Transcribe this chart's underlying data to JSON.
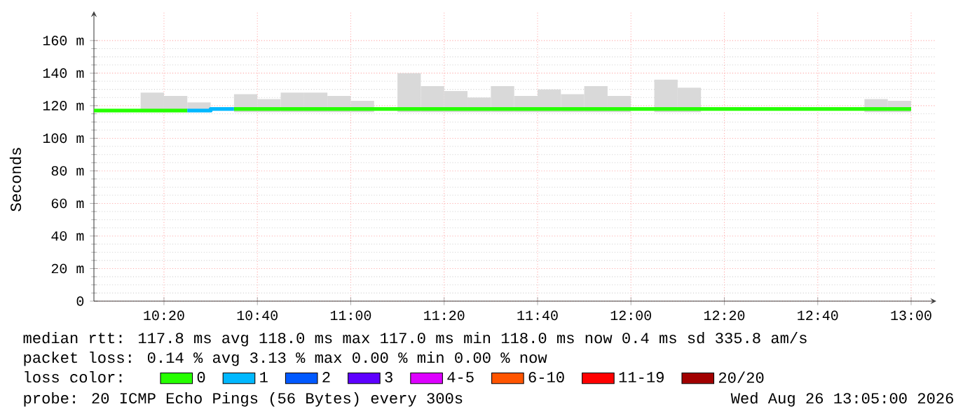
{
  "chart_data": {
    "type": "line",
    "ylabel": "Seconds",
    "legend_title": "loss color:",
    "legend": "bottom left",
    "grid": true,
    "xlim": [
      10.0833,
      13.09
    ],
    "ylim": [
      0,
      178
    ],
    "xticks": [
      {
        "value": 10.3333,
        "label": "10:20"
      },
      {
        "value": 10.6667,
        "label": "10:40"
      },
      {
        "value": 11,
        "label": "11:00"
      },
      {
        "value": 11.3333,
        "label": "11:20"
      },
      {
        "value": 11.6667,
        "label": "11:40"
      },
      {
        "value": 12,
        "label": "12:00"
      },
      {
        "value": 12.3333,
        "label": "12:20"
      },
      {
        "value": 12.6667,
        "label": "12:40"
      },
      {
        "value": 13,
        "label": "13:00"
      }
    ],
    "yticks": [
      0,
      {
        "value": 20,
        "label": "20 m"
      },
      {
        "value": 40,
        "label": "40 m"
      },
      {
        "value": 60,
        "label": "60 m"
      },
      {
        "value": 80,
        "label": "80 m"
      },
      {
        "value": 100,
        "label": "100 m"
      },
      {
        "value": 120,
        "label": "120 m"
      },
      {
        "value": 140,
        "label": "140 m"
      },
      {
        "value": 160,
        "label": "160 m"
      }
    ],
    "annotations": [
      "median rtt:  117.8 ms avg  118.0 ms max  117.0 ms min  118.0 ms now  0.4 ms sd  335.8   am/s",
      "packet loss: 0.14 % avg  3.13 % max  0.00 % min  0.00 % now",
      "probe:       20 ICMP Echo Pings (56 Bytes) every 300s",
      "Wed Aug 26 13:05:00 2026"
    ],
    "series": [
      {
        "type": "bar",
        "color": "#d9d9d9",
        "x": [
          10.2917,
          10.375,
          10.4583,
          10.625,
          10.7083,
          10.7917,
          10.875,
          10.9583,
          11.0417,
          11.2083,
          11.2917,
          11.375,
          11.4583,
          11.5417,
          11.625,
          11.7083,
          11.7917,
          11.875,
          11.9583,
          12.125,
          12.2083,
          12.875,
          12.9583
        ],
        "base": [
          116,
          116,
          116,
          116,
          116,
          116,
          116,
          116,
          116,
          116,
          116,
          116,
          116,
          116,
          116,
          116,
          116,
          116,
          116,
          116,
          116,
          116,
          116
        ],
        "values": [
          12,
          10,
          6,
          11,
          8,
          12,
          12,
          10,
          7,
          24,
          16,
          13,
          9,
          16,
          10,
          14,
          11,
          16,
          10,
          20,
          15,
          8,
          7
        ]
      },
      {
        "name": "0",
        "color": "#26ff00",
        "x": [
          10.0833,
          10.4167,
          10.5,
          10.5833,
          13.0
        ],
        "values": [
          117,
          117,
          null,
          118,
          118
        ]
      },
      {
        "name": "1",
        "color": "#00b8ff",
        "x": [
          10.4167,
          10.5,
          10.5,
          10.5833
        ],
        "values": [
          117,
          117,
          118,
          118
        ]
      },
      {
        "name": "2",
        "color": "#0059ff"
      },
      {
        "name": "3",
        "color": "#5e00ff"
      },
      {
        "name": "4-5",
        "color": "#dd00ff"
      },
      {
        "name": "6-10",
        "color": "#ff5500"
      },
      {
        "name": "11-19",
        "color": "#ff0000"
      },
      {
        "name": "20/20",
        "color": "#a10000"
      }
    ]
  }
}
